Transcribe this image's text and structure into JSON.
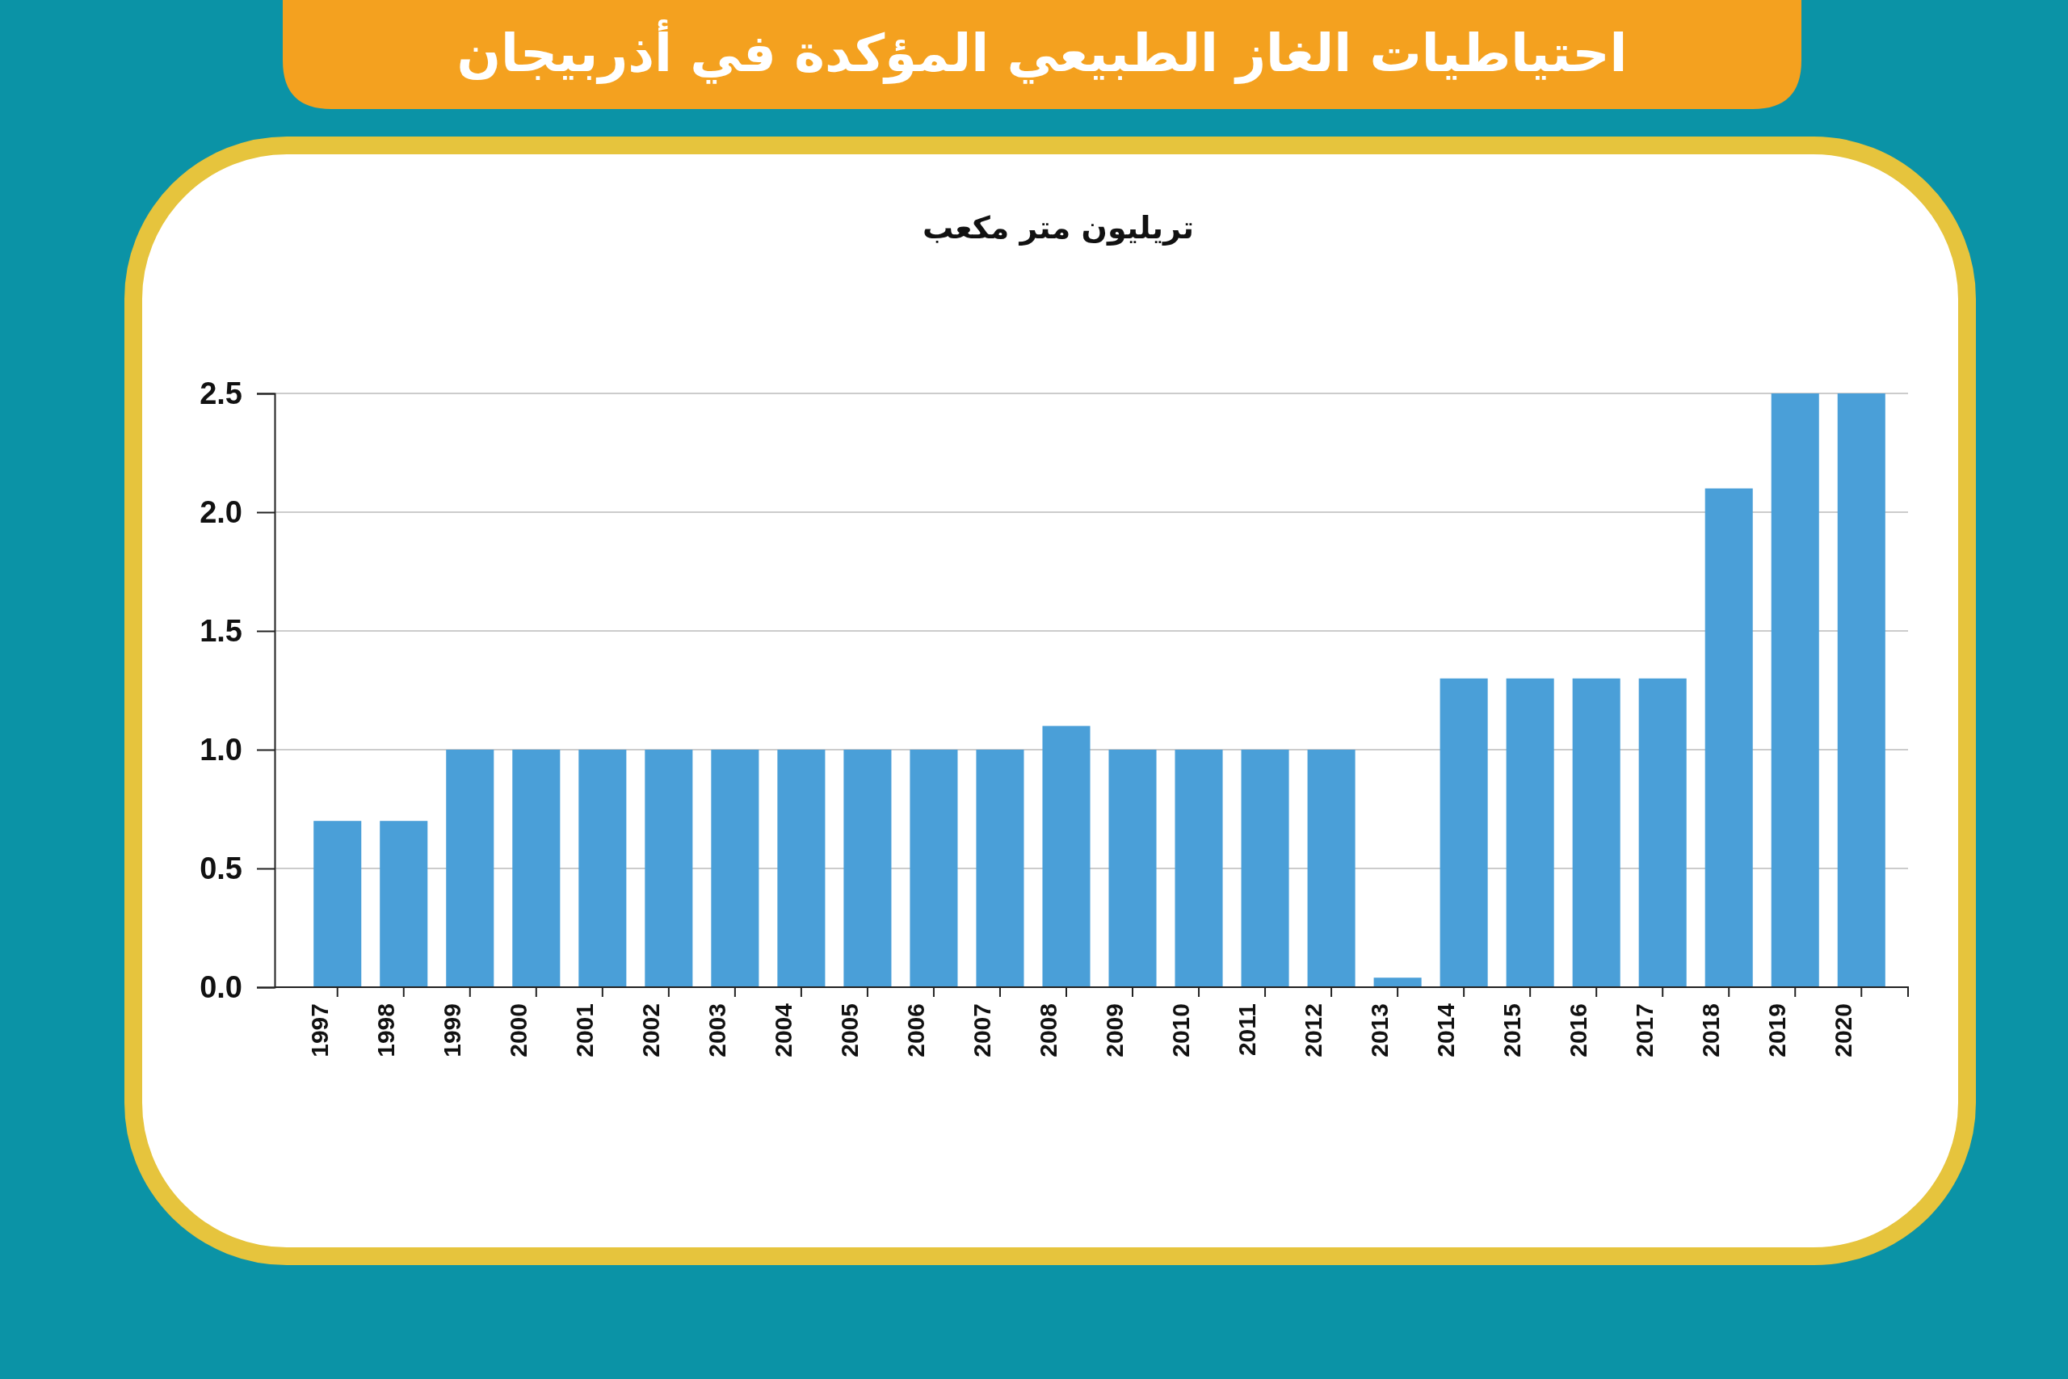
{
  "chart_data": {
    "type": "bar",
    "title": "احتياطيات الغاز الطبيعي المؤكدة في أذربيجان",
    "ylabel": "تريليون متر مكعب",
    "categories": [
      "1997",
      "1998",
      "1999",
      "2000",
      "2001",
      "2002",
      "2003",
      "2004",
      "2005",
      "2006",
      "2007",
      "2008",
      "2009",
      "2010",
      "2011",
      "2012",
      "2013",
      "2014",
      "2015",
      "2016",
      "2017",
      "2018",
      "2019",
      "2020"
    ],
    "values": [
      0.7,
      0.7,
      1.0,
      1.0,
      1.0,
      1.0,
      1.0,
      1.0,
      1.0,
      1.0,
      1.0,
      1.1,
      1.0,
      1.0,
      1.0,
      1.0,
      0.04,
      1.3,
      1.3,
      1.3,
      1.3,
      2.1,
      2.5,
      2.5
    ],
    "color": "#4a9fd8",
    "ylim": [
      0,
      2.5
    ],
    "yticks": [
      {
        "value": 0,
        "label": "0.0"
      },
      {
        "value": 0.5,
        "label": "0.5"
      },
      {
        "value": 1,
        "label": "1.0"
      },
      {
        "value": 1.5,
        "label": "1.5"
      },
      {
        "value": 2,
        "label": "2.0"
      },
      {
        "value": 2.5,
        "label": "2.5"
      }
    ],
    "grid": "y"
  }
}
